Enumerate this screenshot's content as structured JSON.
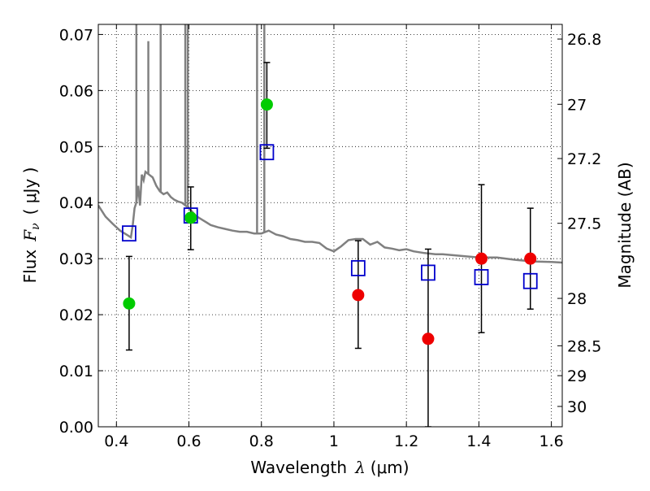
{
  "chart_data": {
    "type": "scatter",
    "xlabel_prefix": "Wavelength",
    "xlabel_symbol": "λ",
    "xlabel_unit": "(μm)",
    "ylabel_prefix": "Flux",
    "ylabel_symbol": "F",
    "ylabel_subscript": "ν",
    "ylabel_unit": "( μJy )",
    "y2label": "Magnitude (AB)",
    "xlim": [
      0.35,
      1.63
    ],
    "ylim": [
      0.0,
      0.0718
    ],
    "grid": true,
    "xticks": [
      {
        "value": 0.4,
        "label": "0.4"
      },
      {
        "value": 0.6,
        "label": "0.6"
      },
      {
        "value": 0.8,
        "label": "0.8"
      },
      {
        "value": 1.0,
        "label": "1"
      },
      {
        "value": 1.2,
        "label": "1.2"
      },
      {
        "value": 1.4,
        "label": "1.4"
      },
      {
        "value": 1.6,
        "label": "1.6"
      }
    ],
    "yticks": [
      {
        "value": 0.0,
        "label": "0.00"
      },
      {
        "value": 0.01,
        "label": "0.01"
      },
      {
        "value": 0.02,
        "label": "0.02"
      },
      {
        "value": 0.03,
        "label": "0.03"
      },
      {
        "value": 0.04,
        "label": "0.04"
      },
      {
        "value": 0.05,
        "label": "0.05"
      },
      {
        "value": 0.06,
        "label": "0.06"
      },
      {
        "value": 0.07,
        "label": "0.07"
      }
    ],
    "mag_ticks": [
      {
        "value": 26.8,
        "label": "26.8"
      },
      {
        "value": 27.0,
        "label": "27"
      },
      {
        "value": 27.2,
        "label": "27.2"
      },
      {
        "value": 27.5,
        "label": "27.5"
      },
      {
        "value": 28.0,
        "label": "28"
      },
      {
        "value": 28.5,
        "label": "28.5"
      },
      {
        "value": 29.0,
        "label": "29"
      },
      {
        "value": 30.0,
        "label": "30"
      }
    ],
    "template": {
      "color": "#808080",
      "x": [
        0.35,
        0.37,
        0.39,
        0.41,
        0.43,
        0.44,
        0.445,
        0.45,
        0.455,
        0.46,
        0.465,
        0.47,
        0.475,
        0.48,
        0.49,
        0.5,
        0.51,
        0.52,
        0.53,
        0.54,
        0.55,
        0.56,
        0.57,
        0.58,
        0.59,
        0.6,
        0.62,
        0.64,
        0.66,
        0.68,
        0.7,
        0.72,
        0.74,
        0.76,
        0.78,
        0.8,
        0.82,
        0.84,
        0.86,
        0.88,
        0.9,
        0.92,
        0.94,
        0.96,
        0.98,
        1.0,
        1.02,
        1.04,
        1.06,
        1.08,
        1.1,
        1.12,
        1.14,
        1.16,
        1.18,
        1.2,
        1.22,
        1.25,
        1.28,
        1.3,
        1.35,
        1.4,
        1.45,
        1.5,
        1.55,
        1.6,
        1.63
      ],
      "y": [
        0.0395,
        0.0375,
        0.0362,
        0.035,
        0.0342,
        0.0338,
        0.036,
        0.039,
        0.04,
        0.043,
        0.0395,
        0.045,
        0.044,
        0.0455,
        0.045,
        0.0445,
        0.043,
        0.042,
        0.0415,
        0.0418,
        0.041,
        0.0405,
        0.0402,
        0.04,
        0.0395,
        0.039,
        0.0376,
        0.0368,
        0.036,
        0.0356,
        0.0353,
        0.035,
        0.0348,
        0.0348,
        0.0345,
        0.0345,
        0.035,
        0.0343,
        0.034,
        0.0335,
        0.0333,
        0.033,
        0.033,
        0.0328,
        0.0318,
        0.0313,
        0.0322,
        0.0333,
        0.0335,
        0.0335,
        0.0325,
        0.033,
        0.032,
        0.0318,
        0.0315,
        0.0317,
        0.0313,
        0.031,
        0.0308,
        0.0308,
        0.0305,
        0.0302,
        0.0302,
        0.0298,
        0.0295,
        0.0294,
        0.0293
      ]
    },
    "template_spikes": [
      {
        "x": 0.455,
        "top": 0.0718
      },
      {
        "x": 0.488,
        "top": 0.0688
      },
      {
        "x": 0.522,
        "top": 0.0718
      },
      {
        "x": 0.59,
        "top": 0.0718
      },
      {
        "x": 0.597,
        "top": 0.0718
      },
      {
        "x": 0.788,
        "top": 0.0718
      },
      {
        "x": 0.808,
        "top": 0.0718
      }
    ],
    "series": [
      {
        "marker": "square-open",
        "color": "#0000cc",
        "x": [
          0.435,
          0.605,
          0.815,
          1.067,
          1.26,
          1.407,
          1.542
        ],
        "y": [
          0.0345,
          0.0377,
          0.049,
          0.0283,
          0.0275,
          0.0267,
          0.026
        ]
      },
      {
        "marker": "circle",
        "color": "#00cc00",
        "x": [
          0.435,
          0.605,
          0.815
        ],
        "y": [
          0.022,
          0.0373,
          0.0575
        ],
        "yerr_low": [
          0.0137,
          0.0316,
          0.0497
        ],
        "yerr_high": [
          0.0304,
          0.0428,
          0.065
        ]
      },
      {
        "marker": "circle",
        "color": "#ee0000",
        "x": [
          1.067,
          1.26,
          1.407,
          1.542
        ],
        "y": [
          0.0235,
          0.0157,
          0.03,
          0.03
        ],
        "yerr_low": [
          0.014,
          0.0,
          0.0168,
          0.021
        ],
        "yerr_high": [
          0.0332,
          0.0317,
          0.0432,
          0.039
        ]
      }
    ]
  }
}
